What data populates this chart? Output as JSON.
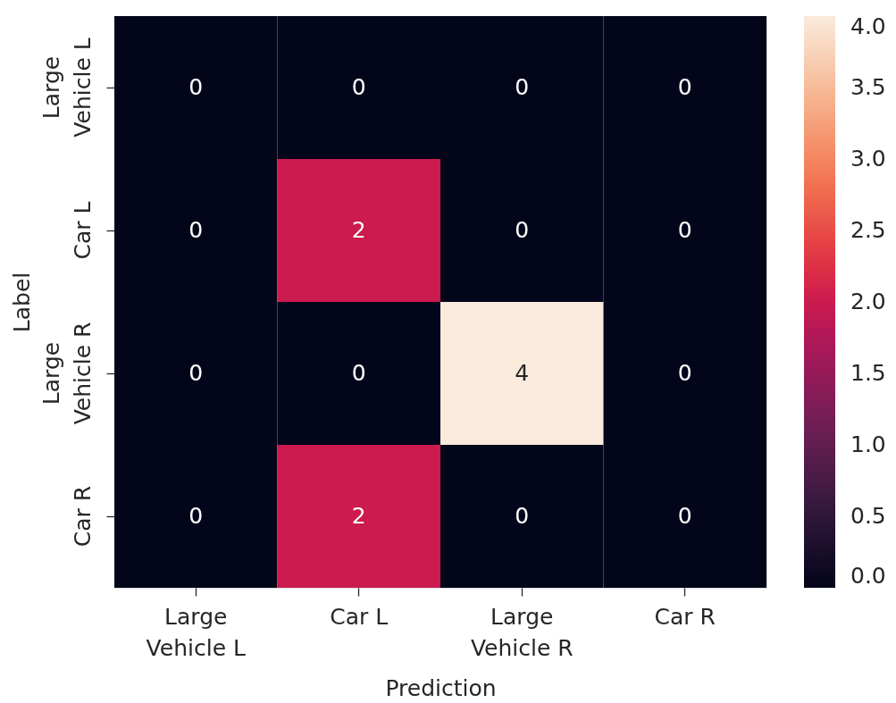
{
  "chart_data": {
    "type": "heatmap",
    "xlabel": "Prediction",
    "ylabel": "Label",
    "categories": [
      "Large\nVehicle L",
      "Car L",
      "Large\nVehicle R",
      "Car R"
    ],
    "y_categories": [
      "Large\nVehicle L",
      "Car L",
      "Large\nVehicle R",
      "Car R"
    ],
    "cells": [
      [
        0,
        0,
        0,
        0
      ],
      [
        0,
        2,
        0,
        0
      ],
      [
        0,
        0,
        4,
        0
      ],
      [
        0,
        2,
        0,
        0
      ]
    ],
    "data_labels": true,
    "clim": [
      0,
      4
    ],
    "cticks": [
      {
        "value": 0,
        "label": "0.0"
      },
      0.5,
      {
        "value": 1,
        "label": "1.0"
      },
      1.5,
      {
        "value": 2,
        "label": "2.0"
      },
      2.5,
      {
        "value": 3,
        "label": "3.0"
      },
      3.5,
      {
        "value": 4,
        "label": "4.0"
      }
    ]
  }
}
